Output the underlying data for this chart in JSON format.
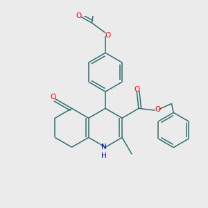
{
  "bg_color": "#ebebeb",
  "bond_color": "#2d6e6e",
  "atom_colors": {
    "O": "#ff0000",
    "N": "#0000cc",
    "C": "#2d6e6e",
    "H": "#444444"
  },
  "line_width": 1.1,
  "font_size": 7.5,
  "dbo": 0.032
}
